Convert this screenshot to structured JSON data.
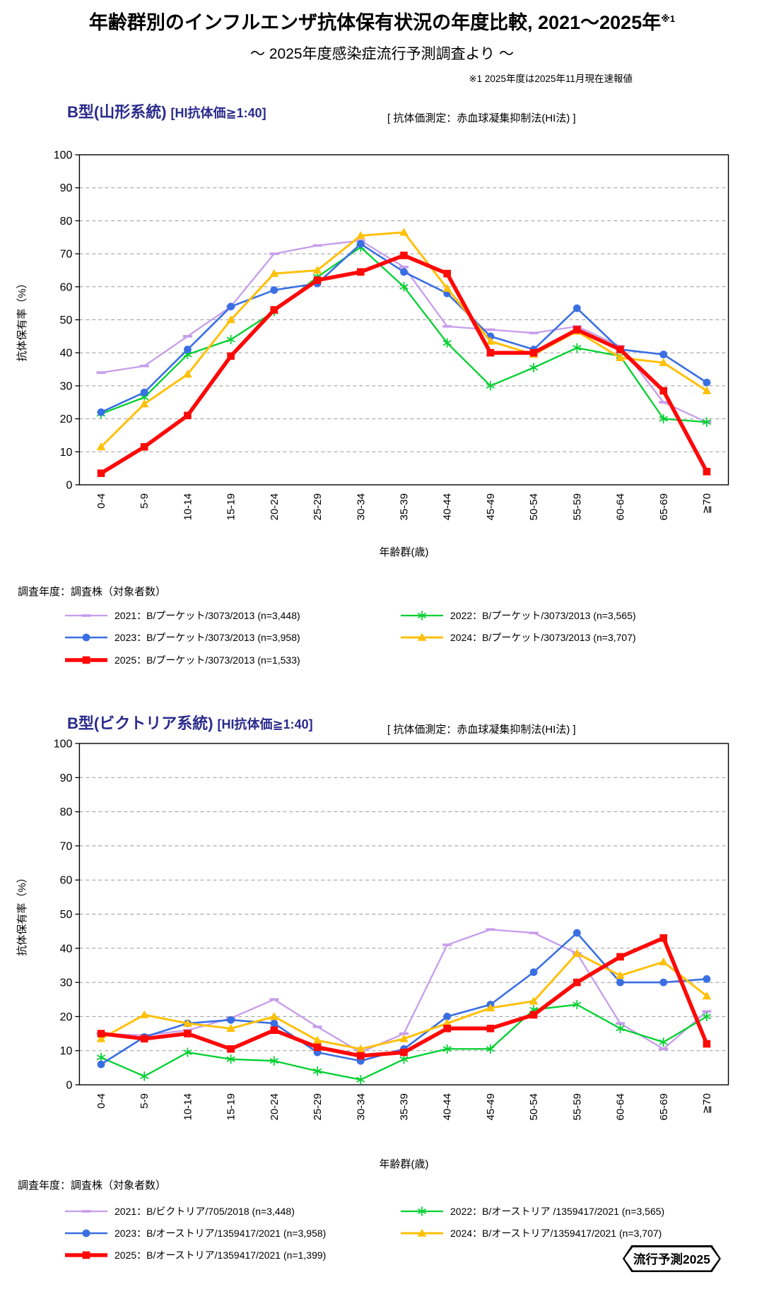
{
  "page": {
    "main_title": "年齢群別のインフルエンザ抗体保有状況の年度比較, 2021～2025年",
    "main_title_sup": "※1",
    "subtitle": "～ 2025年度感染症流行予測調査より ～",
    "footnote": "※1  2025年度は2025年11月現在速報値",
    "badge_label": "流行予測2025"
  },
  "chart_data": [
    {
      "type": "line",
      "title": "B型(山形系統)",
      "title_bracket": "[HI抗体価≧1:40]",
      "method_note": "[ 抗体価測定：赤血球凝集抑制法(HI法) ]",
      "xlabel": "年齢群(歳)",
      "ylabel": "抗体保有率（%）",
      "ylim": [
        0,
        100
      ],
      "ytick_step": 10,
      "grid": "horizontal-dashed",
      "legend_title": "調査年度：調査株（対象者数）",
      "categories": [
        "0-4",
        "5-9",
        "10-14",
        "15-19",
        "20-24",
        "25-29",
        "30-34",
        "35-39",
        "40-44",
        "45-49",
        "50-54",
        "55-59",
        "60-64",
        "65-69",
        "≧70"
      ],
      "series": [
        {
          "year": "2021",
          "label": "2021：B/プーケット/3073/2013 (n=3,448)",
          "color": "#C79DEB",
          "marker": "dash",
          "line_width": 2.3,
          "values": [
            34,
            36,
            45,
            54,
            70,
            72.5,
            74,
            66,
            48,
            47,
            46,
            48,
            42,
            25,
            19
          ]
        },
        {
          "year": "2022",
          "label": "2022：B/プーケット/3073/2013 (n=3,565)",
          "color": "#00D02F",
          "marker": "asterisk",
          "line_width": 2.3,
          "values": [
            21.5,
            26.5,
            39.5,
            44,
            52.5,
            63,
            72,
            60,
            43,
            30,
            35.5,
            41.5,
            39,
            20,
            19
          ]
        },
        {
          "year": "2023",
          "label": "2023：B/プーケット/3073/2013 (n=3,958)",
          "color": "#3A6FE3",
          "marker": "circle",
          "line_width": 2.6,
          "values": [
            22,
            28,
            41,
            54,
            59,
            61,
            73,
            64.5,
            58,
            45,
            41,
            53.5,
            41,
            39.5,
            31
          ]
        },
        {
          "year": "2024",
          "label": "2024：B/プーケット/3073/2013 (n=3,707)",
          "color": "#FFC008",
          "marker": "triangle",
          "line_width": 3,
          "values": [
            11.5,
            24.5,
            33.5,
            50,
            64,
            65,
            75.5,
            76.5,
            59.5,
            43.5,
            39.5,
            46.5,
            38.5,
            37,
            28.5
          ]
        },
        {
          "year": "2025",
          "label": "2025：B/プーケット/3073/2013 (n=1,533)",
          "color": "#FE0808",
          "marker": "square",
          "line_width": 5.5,
          "values": [
            3.5,
            11.5,
            21,
            39,
            53,
            62,
            64.5,
            69.5,
            64,
            40,
            40,
            47,
            41,
            28.5,
            4
          ]
        }
      ]
    },
    {
      "type": "line",
      "title": "B型(ビクトリア系統)",
      "title_bracket": "[HI抗体価≧1:40]",
      "method_note": "[ 抗体価測定：赤血球凝集抑制法(HI法) ]",
      "xlabel": "年齢群(歳)",
      "ylabel": "抗体保有率（%）",
      "ylim": [
        0,
        100
      ],
      "ytick_step": 10,
      "grid": "horizontal-dashed",
      "legend_title": "調査年度：調査株（対象者数）",
      "categories": [
        "0-4",
        "5-9",
        "10-14",
        "15-19",
        "20-24",
        "25-29",
        "30-34",
        "35-39",
        "40-44",
        "45-49",
        "50-54",
        "55-59",
        "60-64",
        "65-69",
        "≧70"
      ],
      "series": [
        {
          "year": "2021",
          "label": "2021：B/ビクトリア/705/2018 (n=3,448)",
          "color": "#C79DEB",
          "marker": "dash",
          "line_width": 2.3,
          "values": [
            15,
            14.5,
            16,
            19.5,
            25,
            17,
            9.5,
            15,
            41,
            45.5,
            44.5,
            38.5,
            18,
            10.5,
            21.5
          ]
        },
        {
          "year": "2022",
          "label": "2022：B/オーストリア /1359417/2021 (n=3,565)",
          "color": "#00D02F",
          "marker": "asterisk",
          "line_width": 2.3,
          "values": [
            8,
            2.5,
            9.5,
            7.5,
            7,
            4,
            1.5,
            7.5,
            10.5,
            10.5,
            22,
            23.5,
            16.5,
            12.5,
            20
          ]
        },
        {
          "year": "2023",
          "label": "2023：B/オーストリア/1359417/2021 (n=3,958)",
          "color": "#3A6FE3",
          "marker": "circle",
          "line_width": 2.6,
          "values": [
            6,
            14,
            18,
            19,
            18,
            9.5,
            7,
            10.5,
            20,
            23.5,
            33,
            44.5,
            30,
            30,
            31
          ]
        },
        {
          "year": "2024",
          "label": "2024：B/オーストリア/1359417/2021 (n=3,707)",
          "color": "#FFC008",
          "marker": "triangle",
          "line_width": 3,
          "values": [
            13.5,
            20.5,
            18,
            16.5,
            20,
            13,
            10.5,
            13.5,
            18,
            22.5,
            24.5,
            38.5,
            32,
            36,
            26
          ]
        },
        {
          "year": "2025",
          "label": "2025：B/オーストリア/1359417/2021 (n=1,399)",
          "color": "#FE0808",
          "marker": "square",
          "line_width": 5.5,
          "values": [
            15,
            13.5,
            15,
            10.5,
            16,
            11,
            8.5,
            9.5,
            16.5,
            16.5,
            20.5,
            30,
            37.5,
            43,
            12
          ]
        }
      ]
    }
  ]
}
